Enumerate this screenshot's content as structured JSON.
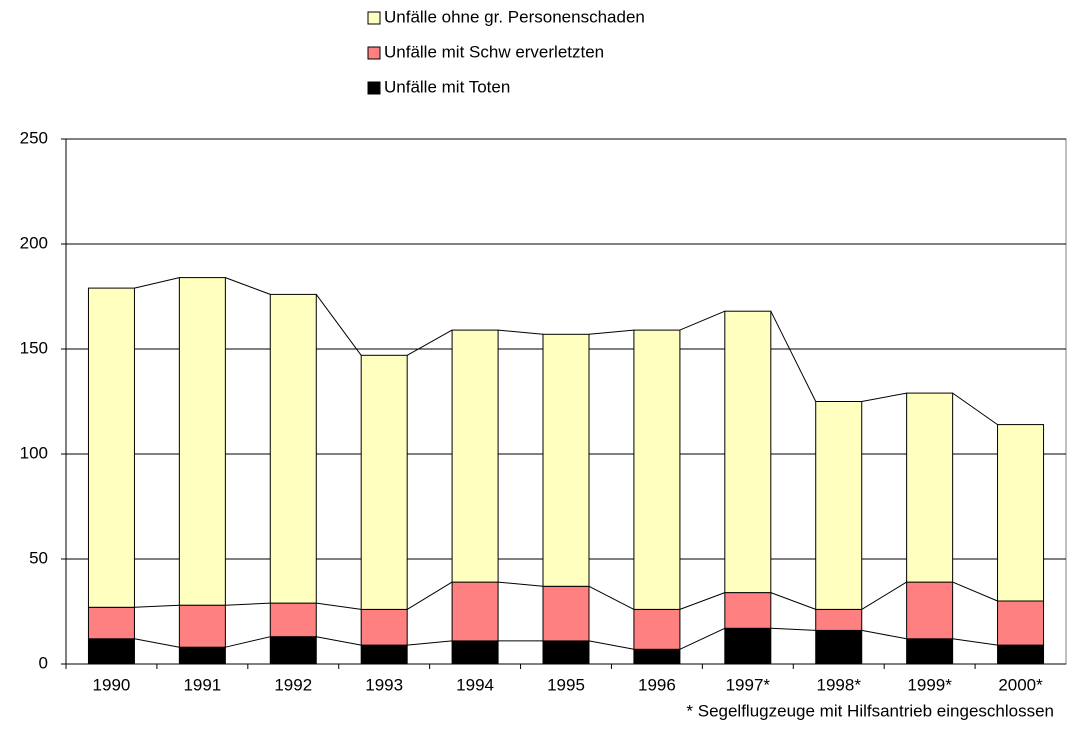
{
  "chart_data": {
    "type": "stacked_bar",
    "categories": [
      "1990",
      "1991",
      "1992",
      "1993",
      "1994",
      "1995",
      "1996",
      "1997*",
      "1998*",
      "1999*",
      "2000*"
    ],
    "series": [
      {
        "name": "Unfälle mit Toten",
        "color": "#000000",
        "values": [
          12,
          8,
          13,
          9,
          11,
          11,
          7,
          17,
          16,
          12,
          9
        ]
      },
      {
        "name": "Unfälle mit Schw erverletzten",
        "color": "#ff8080",
        "values": [
          15,
          20,
          16,
          17,
          28,
          26,
          19,
          17,
          10,
          27,
          21
        ]
      },
      {
        "name": "Unfälle ohne gr. Personenschaden",
        "color": "#ffffc0",
        "values": [
          152,
          156,
          147,
          121,
          120,
          120,
          133,
          134,
          99,
          90,
          84
        ]
      }
    ],
    "ylim": [
      0,
      250
    ],
    "yticks": [
      0,
      50,
      100,
      150,
      200,
      250
    ],
    "grid": true,
    "legend": "top",
    "note": "* Segelflugzeuge mit Hilfsantrieb eingeschlossen"
  }
}
